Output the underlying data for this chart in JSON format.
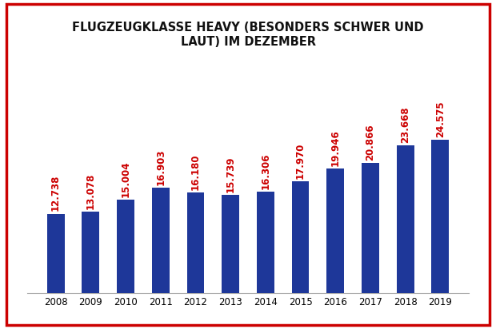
{
  "title": "FLUGZEUGKLASSE HEAVY (BESONDERS SCHWER UND\nLAUT) IM DEZEMBER",
  "years": [
    2008,
    2009,
    2010,
    2011,
    2012,
    2013,
    2014,
    2015,
    2016,
    2017,
    2018,
    2019
  ],
  "values": [
    12738,
    13078,
    15004,
    16903,
    16180,
    15739,
    16306,
    17970,
    19946,
    20866,
    23668,
    24575
  ],
  "labels": [
    "12.738",
    "13.078",
    "15.004",
    "16.903",
    "16.180",
    "15.739",
    "16.306",
    "17.970",
    "19.946",
    "20.866",
    "23.668",
    "24.575"
  ],
  "bar_color": "#1e3799",
  "label_color": "#cc0000",
  "background_color": "#ffffff",
  "border_color": "#cc0000",
  "title_fontsize": 10.5,
  "label_fontsize": 8.5,
  "tick_fontsize": 8.5,
  "ylim": [
    0,
    38000
  ],
  "bar_width": 0.5
}
